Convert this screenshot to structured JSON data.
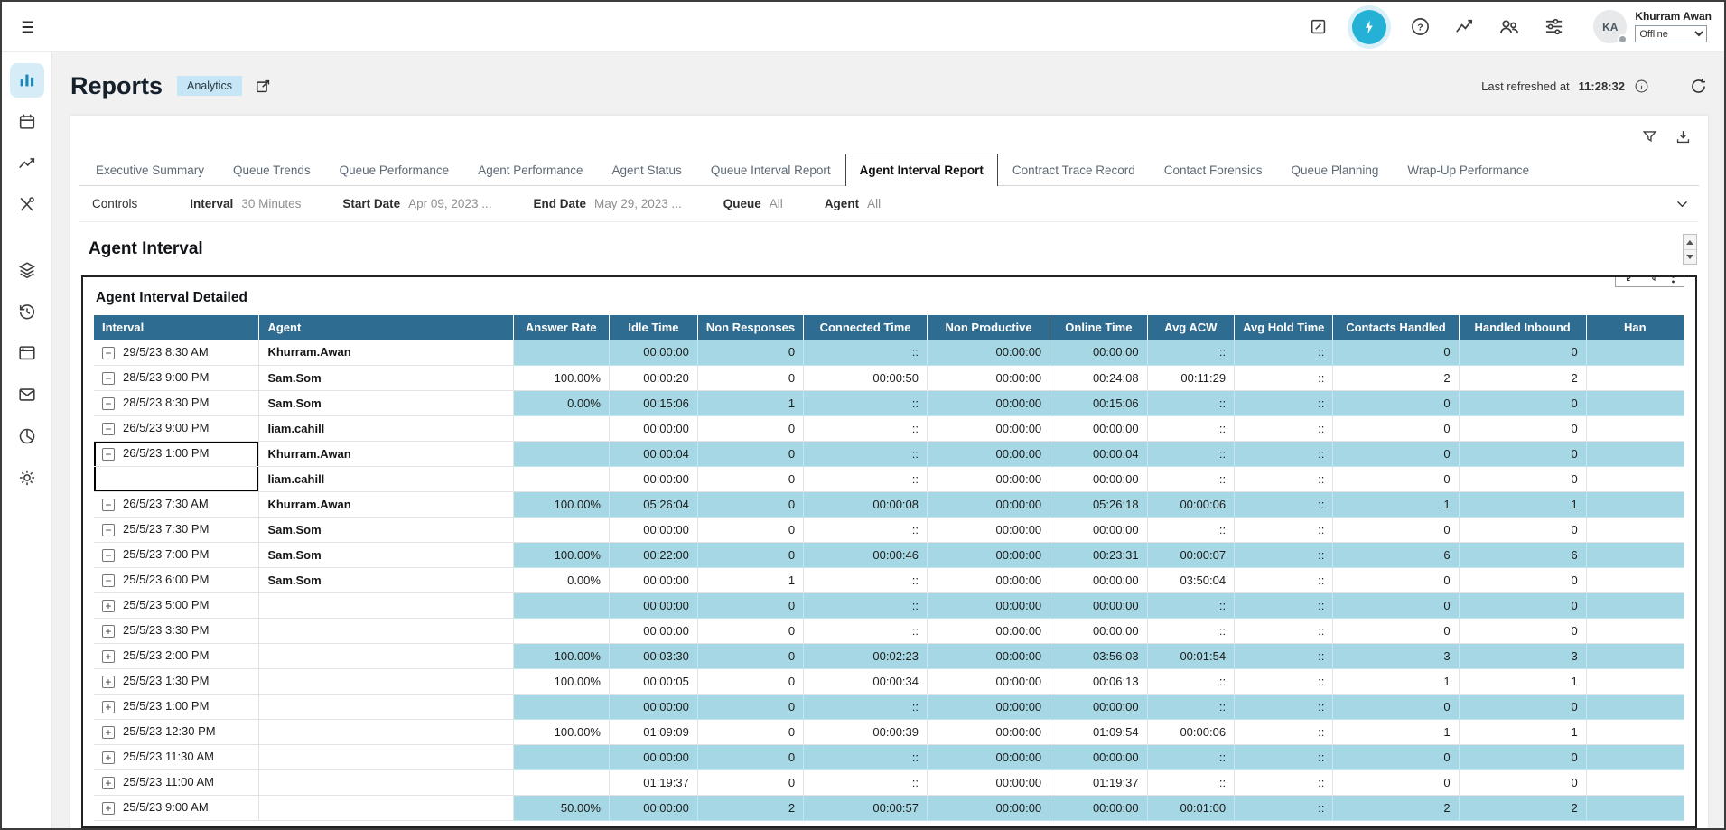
{
  "topbar": {
    "user_name": "Khurram Awan",
    "user_initials": "KA",
    "status": "Offline"
  },
  "page": {
    "title": "Reports",
    "badge": "Analytics",
    "last_refreshed_label": "Last refreshed at",
    "last_refreshed_time": "11:28:32"
  },
  "tabs": [
    {
      "label": "Executive Summary",
      "active": false
    },
    {
      "label": "Queue Trends",
      "active": false
    },
    {
      "label": "Queue Performance",
      "active": false
    },
    {
      "label": "Agent Performance",
      "active": false
    },
    {
      "label": "Agent Status",
      "active": false
    },
    {
      "label": "Queue Interval Report",
      "active": false
    },
    {
      "label": "Agent Interval Report",
      "active": true
    },
    {
      "label": "Contract Trace Record",
      "active": false
    },
    {
      "label": "Contact Forensics",
      "active": false
    },
    {
      "label": "Queue Planning",
      "active": false
    },
    {
      "label": "Wrap-Up Performance",
      "active": false
    }
  ],
  "controls": {
    "label": "Controls",
    "filters": [
      {
        "label": "Interval",
        "value": "30 Minutes"
      },
      {
        "label": "Start Date",
        "value": "Apr 09, 2023 ..."
      },
      {
        "label": "End Date",
        "value": "May 29, 2023 ..."
      },
      {
        "label": "Queue",
        "value": "All"
      },
      {
        "label": "Agent",
        "value": "All"
      }
    ]
  },
  "report": {
    "section_title": "Agent Interval",
    "panel_title": "Agent Interval Detailed"
  },
  "table": {
    "columns": [
      "Interval",
      "Agent",
      "Answer Rate",
      "Idle Time",
      "Non Responses",
      "Connected Time",
      "Non Productive",
      "Online Time",
      "Avg ACW",
      "Avg Hold Time",
      "Contacts Handled",
      "Handled Inbound",
      "Han"
    ],
    "rows": [
      {
        "expand": "collapsed",
        "interval": "29/5/23 8:30 AM",
        "agent": "Khurram.Awan",
        "selected": "",
        "values": [
          "",
          "00:00:00",
          "0",
          "::",
          "00:00:00",
          "00:00:00",
          "::",
          "::",
          "0",
          "0"
        ]
      },
      {
        "expand": "collapsed",
        "interval": "28/5/23 9:00 PM",
        "agent": "Sam.Som",
        "selected": "",
        "values": [
          "100.00%",
          "00:00:20",
          "0",
          "00:00:50",
          "00:00:00",
          "00:24:08",
          "00:11:29",
          "::",
          "2",
          "2"
        ]
      },
      {
        "expand": "collapsed",
        "interval": "28/5/23 8:30 PM",
        "agent": "Sam.Som",
        "selected": "",
        "values": [
          "0.00%",
          "00:15:06",
          "1",
          "::",
          "00:00:00",
          "00:15:06",
          "::",
          "::",
          "0",
          "0"
        ]
      },
      {
        "expand": "collapsed",
        "interval": "26/5/23 9:00 PM",
        "agent": "liam.cahill",
        "selected": "",
        "values": [
          "",
          "00:00:00",
          "0",
          "::",
          "00:00:00",
          "00:00:00",
          "::",
          "::",
          "0",
          "0"
        ]
      },
      {
        "expand": "collapsed",
        "interval": "26/5/23 1:00 PM",
        "agent": "Khurram.Awan",
        "selected": "top",
        "values": [
          "",
          "00:00:04",
          "0",
          "::",
          "00:00:00",
          "00:00:04",
          "::",
          "::",
          "0",
          "0"
        ]
      },
      {
        "expand": "none",
        "interval": "",
        "agent": "liam.cahill",
        "selected": "bottom",
        "values": [
          "",
          "00:00:00",
          "0",
          "::",
          "00:00:00",
          "00:00:00",
          "::",
          "::",
          "0",
          "0"
        ]
      },
      {
        "expand": "collapsed",
        "interval": "26/5/23 7:30 AM",
        "agent": "Khurram.Awan",
        "selected": "",
        "values": [
          "100.00%",
          "05:26:04",
          "0",
          "00:00:08",
          "00:00:00",
          "05:26:18",
          "00:00:06",
          "::",
          "1",
          "1"
        ]
      },
      {
        "expand": "collapsed",
        "interval": "25/5/23 7:30 PM",
        "agent": "Sam.Som",
        "selected": "",
        "values": [
          "",
          "00:00:00",
          "0",
          "::",
          "00:00:00",
          "00:00:00",
          "::",
          "::",
          "0",
          "0"
        ]
      },
      {
        "expand": "collapsed",
        "interval": "25/5/23 7:00 PM",
        "agent": "Sam.Som",
        "selected": "",
        "values": [
          "100.00%",
          "00:22:00",
          "0",
          "00:00:46",
          "00:00:00",
          "00:23:31",
          "00:00:07",
          "::",
          "6",
          "6"
        ]
      },
      {
        "expand": "collapsed",
        "interval": "25/5/23 6:00 PM",
        "agent": "Sam.Som",
        "selected": "",
        "values": [
          "0.00%",
          "00:00:00",
          "1",
          "::",
          "00:00:00",
          "00:00:00",
          "03:50:04",
          "::",
          "0",
          "0"
        ]
      },
      {
        "expand": "expandable",
        "interval": "25/5/23 5:00 PM",
        "agent": "",
        "selected": "",
        "values": [
          "",
          "00:00:00",
          "0",
          "::",
          "00:00:00",
          "00:00:00",
          "::",
          "::",
          "0",
          "0"
        ]
      },
      {
        "expand": "expandable",
        "interval": "25/5/23 3:30 PM",
        "agent": "",
        "selected": "",
        "values": [
          "",
          "00:00:00",
          "0",
          "::",
          "00:00:00",
          "00:00:00",
          "::",
          "::",
          "0",
          "0"
        ]
      },
      {
        "expand": "expandable",
        "interval": "25/5/23 2:00 PM",
        "agent": "",
        "selected": "",
        "values": [
          "100.00%",
          "00:03:30",
          "0",
          "00:02:23",
          "00:00:00",
          "03:56:03",
          "00:01:54",
          "::",
          "3",
          "3"
        ]
      },
      {
        "expand": "expandable",
        "interval": "25/5/23 1:30 PM",
        "agent": "",
        "selected": "",
        "values": [
          "100.00%",
          "00:00:05",
          "0",
          "00:00:34",
          "00:00:00",
          "00:06:13",
          "::",
          "::",
          "1",
          "1"
        ]
      },
      {
        "expand": "expandable",
        "interval": "25/5/23 1:00 PM",
        "agent": "",
        "selected": "",
        "values": [
          "",
          "00:00:00",
          "0",
          "::",
          "00:00:00",
          "00:00:00",
          "::",
          "::",
          "0",
          "0"
        ]
      },
      {
        "expand": "expandable",
        "interval": "25/5/23 12:30 PM",
        "agent": "",
        "selected": "",
        "values": [
          "100.00%",
          "01:09:09",
          "0",
          "00:00:39",
          "00:00:00",
          "01:09:54",
          "00:00:06",
          "::",
          "1",
          "1"
        ]
      },
      {
        "expand": "expandable",
        "interval": "25/5/23 11:30 AM",
        "agent": "",
        "selected": "",
        "values": [
          "",
          "00:00:00",
          "0",
          "::",
          "00:00:00",
          "00:00:00",
          "::",
          "::",
          "0",
          "0"
        ]
      },
      {
        "expand": "expandable",
        "interval": "25/5/23 11:00 AM",
        "agent": "",
        "selected": "",
        "values": [
          "",
          "01:19:37",
          "0",
          "::",
          "00:00:00",
          "01:19:37",
          "::",
          "::",
          "0",
          "0"
        ]
      },
      {
        "expand": "expandable",
        "interval": "25/5/23 9:00 AM",
        "agent": "",
        "selected": "",
        "values": [
          "50.00%",
          "00:00:00",
          "2",
          "00:00:57",
          "00:00:00",
          "00:00:00",
          "00:01:00",
          "::",
          "2",
          "2"
        ]
      }
    ]
  }
}
